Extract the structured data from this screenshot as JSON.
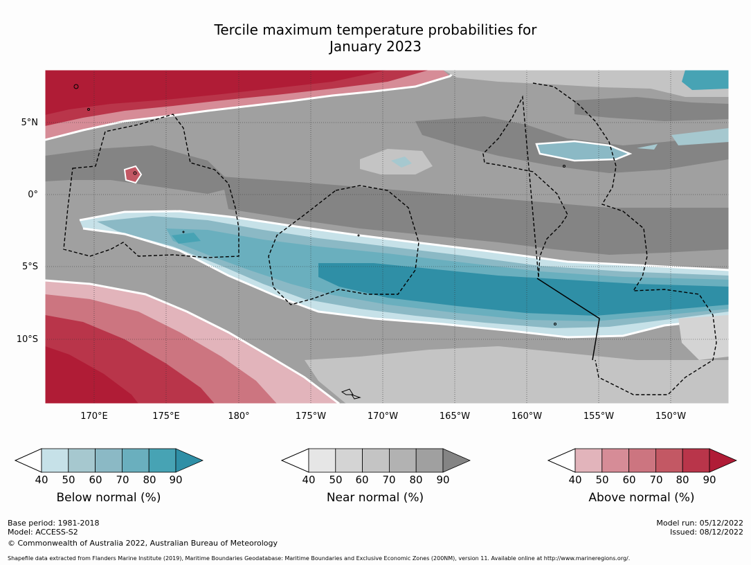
{
  "title": {
    "line1": "Tercile maximum temperature probabilities for",
    "line2": "January 2023"
  },
  "map": {
    "latitude_labels": [
      "5°N",
      "0°",
      "5°S",
      "10°S"
    ],
    "longitude_labels": [
      "170°E",
      "175°E",
      "180°",
      "175°W",
      "170°W",
      "165°W",
      "160°W",
      "155°W",
      "150°W"
    ],
    "colors": {
      "below": [
        "#c6e1e8",
        "#a6c8cf",
        "#8bb9c5",
        "#6aafbe",
        "#47a3b4",
        "#2f8fa6"
      ],
      "near": [
        "#e6e6e6",
        "#d4d4d4",
        "#c4c4c4",
        "#b2b2b2",
        "#a0a0a0",
        "#848484"
      ],
      "above": [
        "#e2b4bb",
        "#d68c97",
        "#cc7580",
        "#c35864",
        "#b9354a",
        "#b01c36"
      ]
    }
  },
  "colorbars": [
    {
      "id": "below",
      "title": "Below normal (%)",
      "ticks": [
        "40",
        "50",
        "60",
        "70",
        "80",
        "90"
      ]
    },
    {
      "id": "near",
      "title": "Near normal (%)",
      "ticks": [
        "40",
        "50",
        "60",
        "70",
        "80",
        "90"
      ]
    },
    {
      "id": "above",
      "title": "Above normal (%)",
      "ticks": [
        "40",
        "50",
        "60",
        "70",
        "80",
        "90"
      ]
    }
  ],
  "footer": {
    "base_period": "Base period: 1981-2018",
    "model": "Model: ACCESS-S2",
    "copyright": "© Commonwealth of Australia 2022, Australian Bureau of Meteorology",
    "model_run": "Model run: 05/12/2022",
    "issued": "Issued: 08/12/2022",
    "shapefile": "Shapefile data extracted from Flanders Marine Institute (2019), Maritime Boundaries Geodatabase: Maritime Boundaries and Exclusive Economic Zones (200NM), version 11. Available online at http://www.marineregions.org/."
  }
}
